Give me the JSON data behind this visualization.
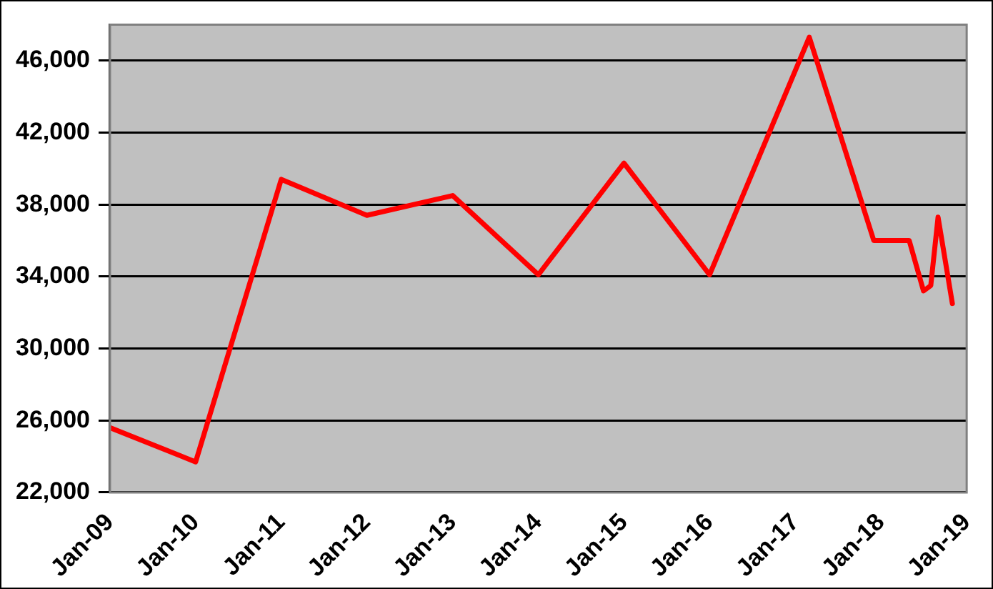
{
  "chart_data": {
    "type": "line",
    "series": [
      {
        "color": "#ff0000",
        "x": [
          "2009-01",
          "2010-01",
          "2011-01",
          "2012-01",
          "2013-01",
          "2014-01",
          "2015-01",
          "2016-01",
          "2017-03",
          "2017-12",
          "2018-05",
          "2018-07",
          "2018-08",
          "2018-09",
          "2018-11"
        ],
        "values": [
          25600,
          23700,
          39400,
          37400,
          38500,
          34100,
          40300,
          34100,
          47300,
          36000,
          36000,
          33200,
          33500,
          37300,
          32500
        ]
      }
    ],
    "xlim": [
      "2009-01",
      "2019-01"
    ],
    "xticks": [
      {
        "value": "2009-01",
        "label": "Jan-09"
      },
      {
        "value": "2010-01",
        "label": "Jan-10"
      },
      {
        "value": "2011-01",
        "label": "Jan-11"
      },
      {
        "value": "2012-01",
        "label": "Jan-12"
      },
      {
        "value": "2013-01",
        "label": "Jan-13"
      },
      {
        "value": "2014-01",
        "label": "Jan-14"
      },
      {
        "value": "2015-01",
        "label": "Jan-15"
      },
      {
        "value": "2016-01",
        "label": "Jan-16"
      },
      {
        "value": "2017-01",
        "label": "Jan-17"
      },
      {
        "value": "2018-01",
        "label": "Jan-18"
      },
      {
        "value": "2019-01",
        "label": "Jan-19"
      }
    ],
    "ylim": [
      22000,
      48000
    ],
    "yticks": [
      {
        "value": 22000,
        "label": "22,000"
      },
      {
        "value": 26000,
        "label": "26,000"
      },
      {
        "value": 30000,
        "label": "30,000"
      },
      {
        "value": 34000,
        "label": "34,000"
      },
      {
        "value": 38000,
        "label": "38,000"
      },
      {
        "value": 42000,
        "label": "42,000"
      },
      {
        "value": 46000,
        "label": "46,000"
      }
    ],
    "grid": "y",
    "legend": false,
    "marker": "none",
    "line_style": "solid"
  }
}
